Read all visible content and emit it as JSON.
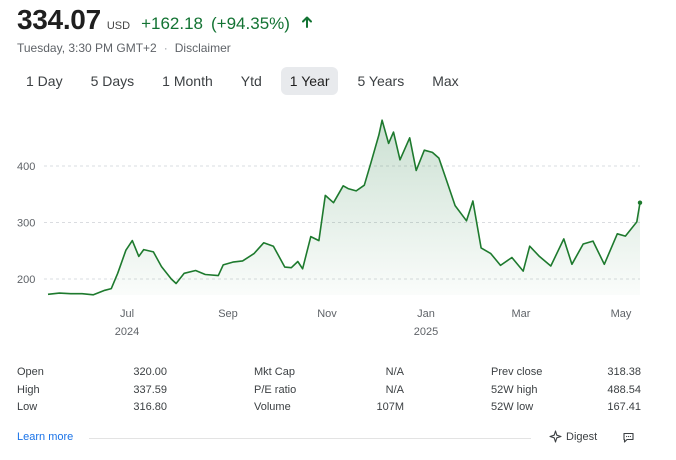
{
  "header": {
    "price": "334.07",
    "currency": "USD",
    "change": "+162.18",
    "change_pct": "(+94.35%)",
    "arrow_icon": "arrow-up-icon",
    "timestamp": "Tuesday, 3:30 PM GMT+2",
    "separator": "·",
    "disclaimer": "Disclaimer"
  },
  "tabs": [
    {
      "label": "1 Day"
    },
    {
      "label": "5 Days"
    },
    {
      "label": "1 Month"
    },
    {
      "label": "Ytd"
    },
    {
      "label": "1 Year",
      "active": true
    },
    {
      "label": "5 Years"
    },
    {
      "label": "Max"
    }
  ],
  "colors": {
    "up": "#137333",
    "line": "#1e7a2e",
    "fill": "#e6f4ea",
    "grid": "#dadce0"
  },
  "chart_data": {
    "type": "area",
    "y_ticks": [
      "400",
      "300",
      "200"
    ],
    "ylim": [
      167,
      489
    ],
    "x_labels": [
      {
        "label": "Jul",
        "year": "2024"
      },
      {
        "label": "Sep",
        "year": ""
      },
      {
        "label": "Nov",
        "year": ""
      },
      {
        "label": "Jan",
        "year": "2025"
      },
      {
        "label": "Mar",
        "year": ""
      },
      {
        "label": "May",
        "year": ""
      }
    ],
    "grid": "horizontal dashed",
    "series": [
      {
        "x": [
          "2024-05-21",
          "2024-05-28",
          "2024-06-04",
          "2024-06-11",
          "2024-06-18",
          "2024-06-25",
          "2024-06-29",
          "2024-07-03",
          "2024-07-08",
          "2024-07-12",
          "2024-07-16",
          "2024-07-19",
          "2024-07-25",
          "2024-07-30",
          "2024-08-05",
          "2024-08-08",
          "2024-08-13",
          "2024-08-20",
          "2024-08-26",
          "2024-09-03",
          "2024-09-06",
          "2024-09-12",
          "2024-09-18",
          "2024-09-25",
          "2024-10-01",
          "2024-10-07",
          "2024-10-14",
          "2024-10-18",
          "2024-10-22",
          "2024-10-25",
          "2024-10-30",
          "2024-11-04",
          "2024-11-08",
          "2024-11-13",
          "2024-11-19",
          "2024-11-22",
          "2024-11-27",
          "2024-12-02",
          "2024-12-06",
          "2024-12-11",
          "2024-12-13",
          "2024-12-17",
          "2024-12-20",
          "2024-12-24",
          "2024-12-30",
          "2025-01-03",
          "2025-01-08",
          "2025-01-13",
          "2025-01-17",
          "2025-01-22",
          "2025-01-27",
          "2025-02-03",
          "2025-02-07",
          "2025-02-12",
          "2025-02-18",
          "2025-02-24",
          "2025-03-03",
          "2025-03-10",
          "2025-03-14",
          "2025-03-20",
          "2025-03-27",
          "2025-04-04",
          "2025-04-09",
          "2025-04-16",
          "2025-04-22",
          "2025-04-29",
          "2025-05-07",
          "2025-05-12",
          "2025-05-19",
          "2025-05-21"
        ],
        "values": [
          173,
          175,
          174,
          174,
          172,
          180,
          183,
          210,
          251,
          268,
          240,
          252,
          248,
          222,
          200,
          192,
          210,
          215,
          208,
          206,
          225,
          230,
          232,
          245,
          264,
          258,
          221,
          220,
          231,
          218,
          275,
          268,
          348,
          335,
          365,
          360,
          356,
          366,
          405,
          455,
          481,
          440,
          460,
          411,
          450,
          392,
          428,
          424,
          414,
          372,
          330,
          303,
          338,
          255,
          245,
          224,
          238,
          214,
          258,
          240,
          223,
          271,
          226,
          262,
          267,
          226,
          280,
          276,
          301,
          335
        ]
      }
    ]
  },
  "stats": [
    [
      {
        "label": "Open",
        "value": "320.00"
      },
      {
        "label": "High",
        "value": "337.59"
      },
      {
        "label": "Low",
        "value": "316.80"
      }
    ],
    [
      {
        "label": "Mkt Cap",
        "value": "N/A"
      },
      {
        "label": "P/E ratio",
        "value": "N/A"
      },
      {
        "label": "Volume",
        "value": "107M"
      }
    ],
    [
      {
        "label": "Prev close",
        "value": "318.38"
      },
      {
        "label": "52W high",
        "value": "488.54"
      },
      {
        "label": "52W low",
        "value": "167.41"
      }
    ]
  ],
  "footer": {
    "learn_more": "Learn more",
    "digest": "Digest",
    "digest_icon": "sparkle-icon",
    "feedback_icon": "feedback-icon"
  }
}
